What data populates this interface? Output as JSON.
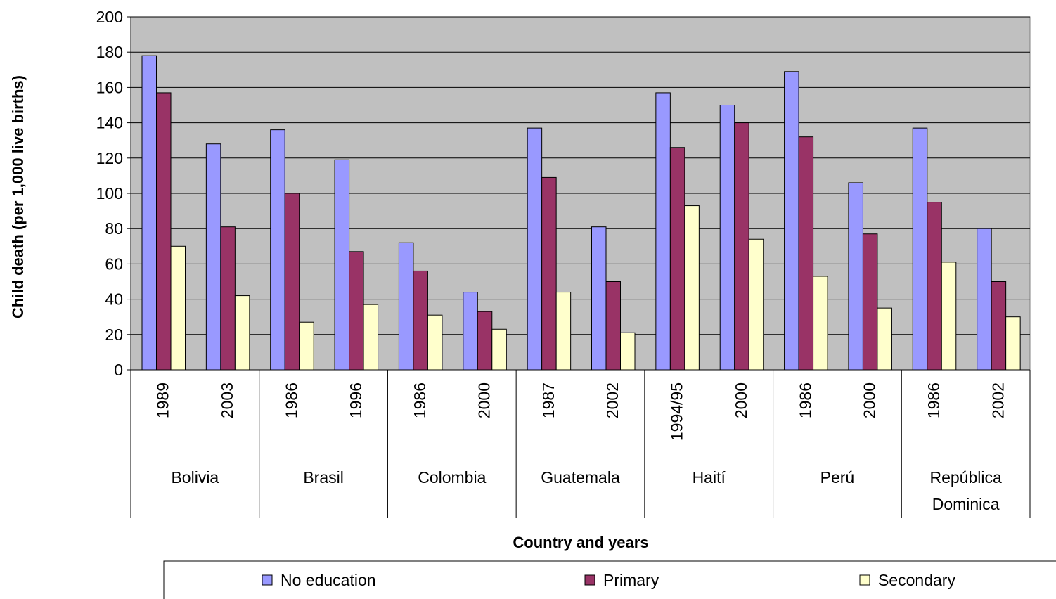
{
  "chart_data": {
    "type": "bar",
    "ylabel": "Child death (per 1,000 live births)",
    "xlabel": "Country and years",
    "ylim": [
      0,
      200
    ],
    "yticks": [
      0,
      20,
      40,
      60,
      80,
      100,
      120,
      140,
      160,
      180,
      200
    ],
    "grid": "horizontal",
    "legend_position": "bottom",
    "plot_background": "#c0c0c0",
    "groups": [
      {
        "country": "Bolivia",
        "years": [
          "1989",
          "2003"
        ]
      },
      {
        "country": "Brasil",
        "years": [
          "1986",
          "1996"
        ]
      },
      {
        "country": "Colombia",
        "years": [
          "1986",
          "2000"
        ]
      },
      {
        "country": "Guatemala",
        "years": [
          "1987",
          "2002"
        ]
      },
      {
        "country": "Haití",
        "years": [
          "1994/95",
          "2000"
        ]
      },
      {
        "country": "Perú",
        "years": [
          "1986",
          "2000"
        ]
      },
      {
        "country": "República Dominica",
        "country_lines": [
          "República",
          "Dominica"
        ],
        "years": [
          "1986",
          "2002"
        ]
      }
    ],
    "categories": [
      "1989",
      "2003",
      "1986",
      "1996",
      "1986",
      "2000",
      "1987",
      "2002",
      "1994/95",
      "2000",
      "1986",
      "2000",
      "1986",
      "2002"
    ],
    "series": [
      {
        "name": "No education",
        "color": "#9999ff",
        "values": [
          178,
          128,
          136,
          119,
          72,
          44,
          137,
          81,
          157,
          150,
          169,
          106,
          137,
          80
        ]
      },
      {
        "name": "Primary",
        "color": "#993366",
        "values": [
          157,
          81,
          100,
          67,
          56,
          33,
          109,
          50,
          126,
          140,
          132,
          77,
          95,
          50
        ]
      },
      {
        "name": "Secondary",
        "color": "#ffffcc",
        "values": [
          70,
          42,
          27,
          37,
          31,
          23,
          44,
          21,
          93,
          74,
          53,
          35,
          61,
          30
        ]
      }
    ]
  }
}
